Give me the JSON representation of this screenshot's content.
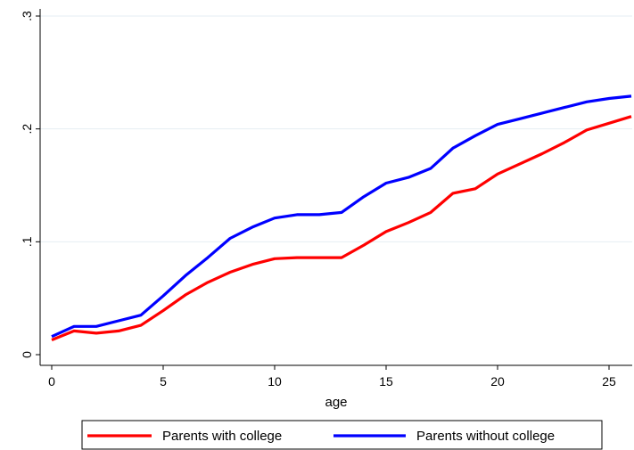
{
  "chart_data": {
    "type": "line",
    "title": "",
    "xlabel": "age",
    "ylabel": "",
    "xlim": [
      0,
      26
    ],
    "ylim": [
      0,
      0.3
    ],
    "xticks": [
      0,
      5,
      10,
      15,
      20,
      25
    ],
    "xtick_labels": [
      "0",
      "5",
      "10",
      "15",
      "20",
      "25"
    ],
    "yticks": [
      0,
      0.1,
      0.2,
      0.3
    ],
    "ytick_labels": [
      "0",
      ".1",
      ".2",
      ".3"
    ],
    "grid": "horizontal",
    "legend_position": "bottom",
    "x": [
      0,
      1,
      2,
      3,
      4,
      5,
      6,
      7,
      8,
      9,
      10,
      11,
      12,
      13,
      14,
      15,
      16,
      17,
      18,
      19,
      20,
      21,
      22,
      23,
      24,
      25,
      26
    ],
    "series": [
      {
        "name": "Parents with college",
        "color": "#ff0000",
        "values": [
          0.013,
          0.021,
          0.019,
          0.021,
          0.026,
          0.039,
          0.053,
          0.064,
          0.073,
          0.08,
          0.085,
          0.086,
          0.086,
          0.086,
          0.097,
          0.109,
          0.117,
          0.126,
          0.143,
          0.147,
          0.16,
          0.169,
          0.178,
          0.188,
          0.199,
          0.205,
          0.211
        ]
      },
      {
        "name": "Parents without college",
        "color": "#0000ff",
        "values": [
          0.016,
          0.025,
          0.025,
          0.03,
          0.035,
          0.052,
          0.07,
          0.086,
          0.103,
          0.113,
          0.121,
          0.124,
          0.124,
          0.126,
          0.14,
          0.152,
          0.157,
          0.165,
          0.183,
          0.194,
          0.204,
          0.209,
          0.214,
          0.219,
          0.224,
          0.227,
          0.229
        ]
      }
    ]
  }
}
